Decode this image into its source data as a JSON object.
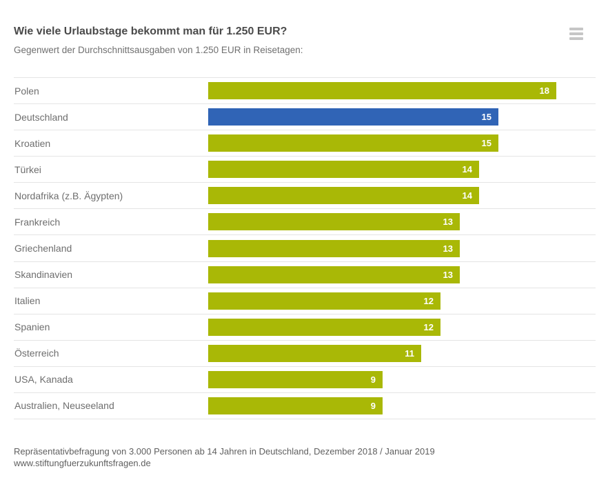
{
  "header": {
    "title": "Wie viele Urlaubstage bekommt man für 1.250 EUR?",
    "subtitle": "Gegenwert der Durchschnittsausgaben von 1.250 EUR in Reisetagen:"
  },
  "menu": {
    "icon": "hamburger-icon"
  },
  "chart_data": {
    "type": "bar",
    "orientation": "horizontal",
    "title": "Wie viele Urlaubstage bekommt man für 1.250 EUR?",
    "subtitle": "Gegenwert der Durchschnittsausgaben von 1.250 EUR in Reisetagen:",
    "categories": [
      "Polen",
      "Deutschland",
      "Kroatien",
      "Türkei",
      "Nordafrika (z.B. Ägypten)",
      "Frankreich",
      "Griechenland",
      "Skandinavien",
      "Italien",
      "Spanien",
      "Österreich",
      "USA, Kanada",
      "Australien, Neuseeland"
    ],
    "values": [
      18,
      15,
      15,
      14,
      14,
      13,
      13,
      13,
      12,
      12,
      11,
      9,
      9
    ],
    "unit": "Reisetage",
    "value_labels": "inside-end, white, bold",
    "highlight_category": "Deutschland",
    "colors": {
      "default": "#a9b806",
      "highlight": "#3064b6"
    },
    "xlim": [
      0,
      20.2
    ],
    "grid": false,
    "legend": "none",
    "row_separator_color": "#e4e4e4"
  },
  "footer": {
    "line1": "Repräsentativbefragung von 3.000 Personen ab 14 Jahren in Deutschland, Dezember 2018 / Januar 2019",
    "line2": "www.stiftungfuerzukunftsfragen.de"
  }
}
